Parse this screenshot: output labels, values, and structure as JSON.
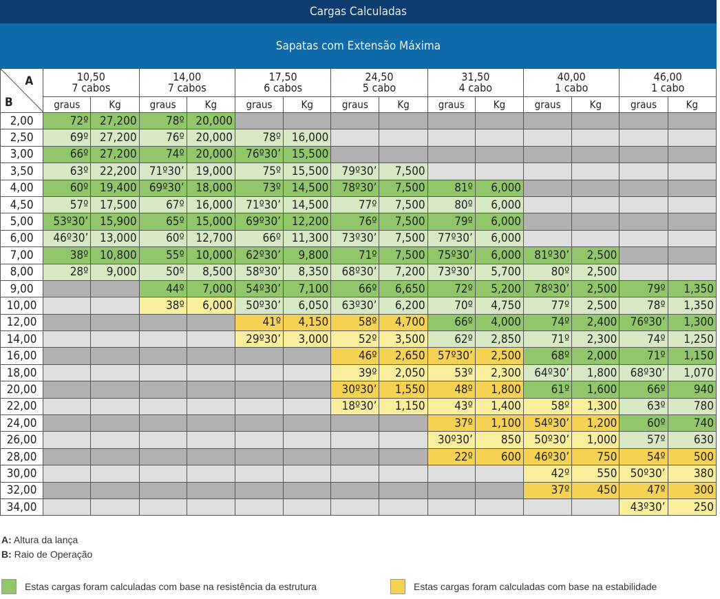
{
  "title": "Cargas Calculadas",
  "subtitle": "Sapatas  com Extensão Máxima",
  "corner": {
    "a": "A",
    "b": "B"
  },
  "columns": [
    {
      "boom": "10,50",
      "cables": "7 cabos"
    },
    {
      "boom": "14,00",
      "cables": "7 cabos"
    },
    {
      "boom": "17,50",
      "cables": "6 cabos"
    },
    {
      "boom": "24,50",
      "cables": "5 cabo"
    },
    {
      "boom": "31,50",
      "cables": "4 cabo"
    },
    {
      "boom": "40,00",
      "cables": "1 cabo"
    },
    {
      "boom": "46,00",
      "cables": "1 cabo"
    }
  ],
  "subheaders": {
    "angle": "graus",
    "load": "Kg"
  },
  "rows": [
    {
      "radius": "2,00",
      "cells": [
        [
          "72º",
          "27,200",
          "g"
        ],
        [
          "78º",
          "20,000",
          "g"
        ],
        [
          "",
          "",
          "gr"
        ],
        [
          "",
          "",
          "gr"
        ],
        [
          "",
          "",
          "gr"
        ],
        [
          "",
          "",
          "gr"
        ],
        [
          "",
          "",
          "gr"
        ]
      ]
    },
    {
      "radius": "2,50",
      "cells": [
        [
          "69º",
          "27,200",
          "lg"
        ],
        [
          "76º",
          "20,000",
          "lg"
        ],
        [
          "78º",
          "16,000",
          "lg"
        ],
        [
          "",
          "",
          "lgr"
        ],
        [
          "",
          "",
          "lgr"
        ],
        [
          "",
          "",
          "lgr"
        ],
        [
          "",
          "",
          "lgr"
        ]
      ]
    },
    {
      "radius": "3,00",
      "cells": [
        [
          "66º",
          "27,200",
          "g"
        ],
        [
          "74º",
          "20,000",
          "g"
        ],
        [
          "76º30’",
          "15,500",
          "g"
        ],
        [
          "",
          "",
          "gr"
        ],
        [
          "",
          "",
          "gr"
        ],
        [
          "",
          "",
          "gr"
        ],
        [
          "",
          "",
          "gr"
        ]
      ]
    },
    {
      "radius": "3,50",
      "cells": [
        [
          "63º",
          "22,200",
          "lg"
        ],
        [
          "71º30’",
          "19,000",
          "lg"
        ],
        [
          "75º",
          "15,500",
          "lg"
        ],
        [
          "79º30’",
          "7,500",
          "lg"
        ],
        [
          "",
          "",
          "lgr"
        ],
        [
          "",
          "",
          "lgr"
        ],
        [
          "",
          "",
          "lgr"
        ]
      ]
    },
    {
      "radius": "4,00",
      "cells": [
        [
          "60º",
          "19,400",
          "g"
        ],
        [
          "69º30’",
          "18,000",
          "g"
        ],
        [
          "73º",
          "14,500",
          "g"
        ],
        [
          "78º30’",
          "7,500",
          "g"
        ],
        [
          "81º",
          "6,000",
          "g"
        ],
        [
          "",
          "",
          "gr"
        ],
        [
          "",
          "",
          "gr"
        ]
      ]
    },
    {
      "radius": "4,50",
      "cells": [
        [
          "57º",
          "17,500",
          "lg"
        ],
        [
          "67º",
          "16,000",
          "lg"
        ],
        [
          "71º30’",
          "14,500",
          "lg"
        ],
        [
          "77º",
          "7,500",
          "lg"
        ],
        [
          "80º",
          "6,000",
          "lg"
        ],
        [
          "",
          "",
          "lgr"
        ],
        [
          "",
          "",
          "lgr"
        ]
      ]
    },
    {
      "radius": "5,00",
      "cells": [
        [
          "53º30’",
          "15,900",
          "g"
        ],
        [
          "65º",
          "15,000",
          "g"
        ],
        [
          "69º30’",
          "12,200",
          "g"
        ],
        [
          "76º",
          "7,500",
          "g"
        ],
        [
          "79º",
          "6,000",
          "g"
        ],
        [
          "",
          "",
          "gr"
        ],
        [
          "",
          "",
          "gr"
        ]
      ]
    },
    {
      "radius": "6,00",
      "cells": [
        [
          "46º30’",
          "13,000",
          "lg"
        ],
        [
          "60º",
          "12,700",
          "lg"
        ],
        [
          "66º",
          "11,300",
          "lg"
        ],
        [
          "73º30’",
          "7,500",
          "lg"
        ],
        [
          "77º30’",
          "6,000",
          "lg"
        ],
        [
          "",
          "",
          "lgr"
        ],
        [
          "",
          "",
          "lgr"
        ]
      ]
    },
    {
      "radius": "7,00",
      "cells": [
        [
          "38º",
          "10,800",
          "g"
        ],
        [
          "55º",
          "10,000",
          "g"
        ],
        [
          "62º30’",
          "9,800",
          "g"
        ],
        [
          "71º",
          "7,500",
          "g"
        ],
        [
          "75º30’",
          "6,000",
          "g"
        ],
        [
          "81º30’",
          "2,500",
          "g"
        ],
        [
          "",
          "",
          "gr"
        ]
      ]
    },
    {
      "radius": "8,00",
      "cells": [
        [
          "28º",
          "9,000",
          "lg"
        ],
        [
          "50º",
          "8,500",
          "lg"
        ],
        [
          "58º30’",
          "8,350",
          "lg"
        ],
        [
          "68º30’",
          "7,200",
          "lg"
        ],
        [
          "73º30’",
          "5,700",
          "lg"
        ],
        [
          "80º",
          "2,500",
          "lg"
        ],
        [
          "",
          "",
          "lgr"
        ]
      ]
    },
    {
      "radius": "9,00",
      "cells": [
        [
          "",
          "",
          "gr"
        ],
        [
          "44º",
          "7,000",
          "g"
        ],
        [
          "54º30’",
          "7,100",
          "g"
        ],
        [
          "66º",
          "6,650",
          "g"
        ],
        [
          "72º",
          "5,200",
          "g"
        ],
        [
          "78º30’",
          "2,500",
          "g"
        ],
        [
          "79º",
          "1,350",
          "g"
        ]
      ]
    },
    {
      "radius": "10,00",
      "cells": [
        [
          "",
          "",
          "lgr"
        ],
        [
          "38º",
          "6,000",
          "ly"
        ],
        [
          "50º30’",
          "6,050",
          "lg"
        ],
        [
          "63º30’",
          "6,200",
          "lg"
        ],
        [
          "70º",
          "4,750",
          "lg"
        ],
        [
          "77º",
          "2,500",
          "lg"
        ],
        [
          "78º",
          "1,350",
          "lg"
        ]
      ]
    },
    {
      "radius": "12,00",
      "cells": [
        [
          "",
          "",
          "gr"
        ],
        [
          "",
          "",
          "gr"
        ],
        [
          "41º",
          "4,150",
          "y"
        ],
        [
          "58º",
          "4,700",
          "y"
        ],
        [
          "66º",
          "4,000",
          "g"
        ],
        [
          "74º",
          "2,400",
          "g"
        ],
        [
          "76º30’",
          "1,300",
          "g"
        ]
      ]
    },
    {
      "radius": "14,00",
      "cells": [
        [
          "",
          "",
          "lgr"
        ],
        [
          "",
          "",
          "lgr"
        ],
        [
          "29º30’",
          "3,000",
          "ly"
        ],
        [
          "52º",
          "3,500",
          "ly"
        ],
        [
          "62º",
          "2,850",
          "lg"
        ],
        [
          "71º",
          "2,300",
          "lg"
        ],
        [
          "74º",
          "1,250",
          "lg"
        ]
      ]
    },
    {
      "radius": "16,00",
      "cells": [
        [
          "",
          "",
          "gr"
        ],
        [
          "",
          "",
          "gr"
        ],
        [
          "",
          "",
          "gr"
        ],
        [
          "46º",
          "2,650",
          "y"
        ],
        [
          "57º30’",
          "2,500",
          "y"
        ],
        [
          "68º",
          "2,000",
          "g"
        ],
        [
          "71º",
          "1,150",
          "g"
        ]
      ]
    },
    {
      "radius": "18,00",
      "cells": [
        [
          "",
          "",
          "lgr"
        ],
        [
          "",
          "",
          "lgr"
        ],
        [
          "",
          "",
          "lgr"
        ],
        [
          "39º",
          "2,050",
          "ly"
        ],
        [
          "53º",
          "2,300",
          "ly"
        ],
        [
          "64º30’",
          "1,800",
          "lg"
        ],
        [
          "68º30’",
          "1,070",
          "lg"
        ]
      ]
    },
    {
      "radius": "20,00",
      "cells": [
        [
          "",
          "",
          "gr"
        ],
        [
          "",
          "",
          "gr"
        ],
        [
          "",
          "",
          "gr"
        ],
        [
          "30º30’",
          "1,550",
          "y"
        ],
        [
          "48º",
          "1,800",
          "y"
        ],
        [
          "61º",
          "1,600",
          "g"
        ],
        [
          "66º",
          "940",
          "g"
        ]
      ]
    },
    {
      "radius": "22,00",
      "cells": [
        [
          "",
          "",
          "lgr"
        ],
        [
          "",
          "",
          "lgr"
        ],
        [
          "",
          "",
          "lgr"
        ],
        [
          "18º30’",
          "1,150",
          "ly"
        ],
        [
          "43º",
          "1,400",
          "ly"
        ],
        [
          "58º",
          "1,300",
          "ly"
        ],
        [
          "63º",
          "780",
          "lg"
        ]
      ]
    },
    {
      "radius": "24,00",
      "cells": [
        [
          "",
          "",
          "gr"
        ],
        [
          "",
          "",
          "gr"
        ],
        [
          "",
          "",
          "gr"
        ],
        [
          "",
          "",
          "gr"
        ],
        [
          "37º",
          "1,100",
          "y"
        ],
        [
          "54º30’",
          "1,200",
          "y"
        ],
        [
          "60º",
          "740",
          "g"
        ]
      ]
    },
    {
      "radius": "26,00",
      "cells": [
        [
          "",
          "",
          "lgr"
        ],
        [
          "",
          "",
          "lgr"
        ],
        [
          "",
          "",
          "lgr"
        ],
        [
          "",
          "",
          "lgr"
        ],
        [
          "30º30’",
          "850",
          "ly"
        ],
        [
          "50º30’",
          "1,000",
          "ly"
        ],
        [
          "57º",
          "630",
          "lg"
        ]
      ]
    },
    {
      "radius": "28,00",
      "cells": [
        [
          "",
          "",
          "gr"
        ],
        [
          "",
          "",
          "gr"
        ],
        [
          "",
          "",
          "gr"
        ],
        [
          "",
          "",
          "gr"
        ],
        [
          "22º",
          "600",
          "y"
        ],
        [
          "46º30’",
          "750",
          "y"
        ],
        [
          "54º",
          "500",
          "y"
        ]
      ]
    },
    {
      "radius": "30,00",
      "cells": [
        [
          "",
          "",
          "lgr"
        ],
        [
          "",
          "",
          "lgr"
        ],
        [
          "",
          "",
          "lgr"
        ],
        [
          "",
          "",
          "lgr"
        ],
        [
          "",
          "",
          "lgr"
        ],
        [
          "42º",
          "550",
          "ly"
        ],
        [
          "50º30’",
          "380",
          "ly"
        ]
      ]
    },
    {
      "radius": "32,00",
      "cells": [
        [
          "",
          "",
          "gr"
        ],
        [
          "",
          "",
          "gr"
        ],
        [
          "",
          "",
          "gr"
        ],
        [
          "",
          "",
          "gr"
        ],
        [
          "",
          "",
          "gr"
        ],
        [
          "37º",
          "450",
          "y"
        ],
        [
          "47º",
          "300",
          "y"
        ]
      ]
    },
    {
      "radius": "34,00",
      "cells": [
        [
          "",
          "",
          "lgr"
        ],
        [
          "",
          "",
          "lgr"
        ],
        [
          "",
          "",
          "lgr"
        ],
        [
          "",
          "",
          "lgr"
        ],
        [
          "",
          "",
          "lgr"
        ],
        [
          "",
          "",
          "lgr"
        ],
        [
          "43º30’",
          "250",
          "ly"
        ]
      ]
    }
  ],
  "notes": {
    "a_key": "A:",
    "a_text": " Altura da lança",
    "b_key": "B:",
    "b_text": " Raio de Operação"
  },
  "legend": {
    "structure": "Estas cargas foram calculadas com base na resistência da estrutura",
    "stability": "Estas cargas foram calculadas com base na estabilidade",
    "structure_color": "#92c66b",
    "stability_color": "#f5d154"
  }
}
